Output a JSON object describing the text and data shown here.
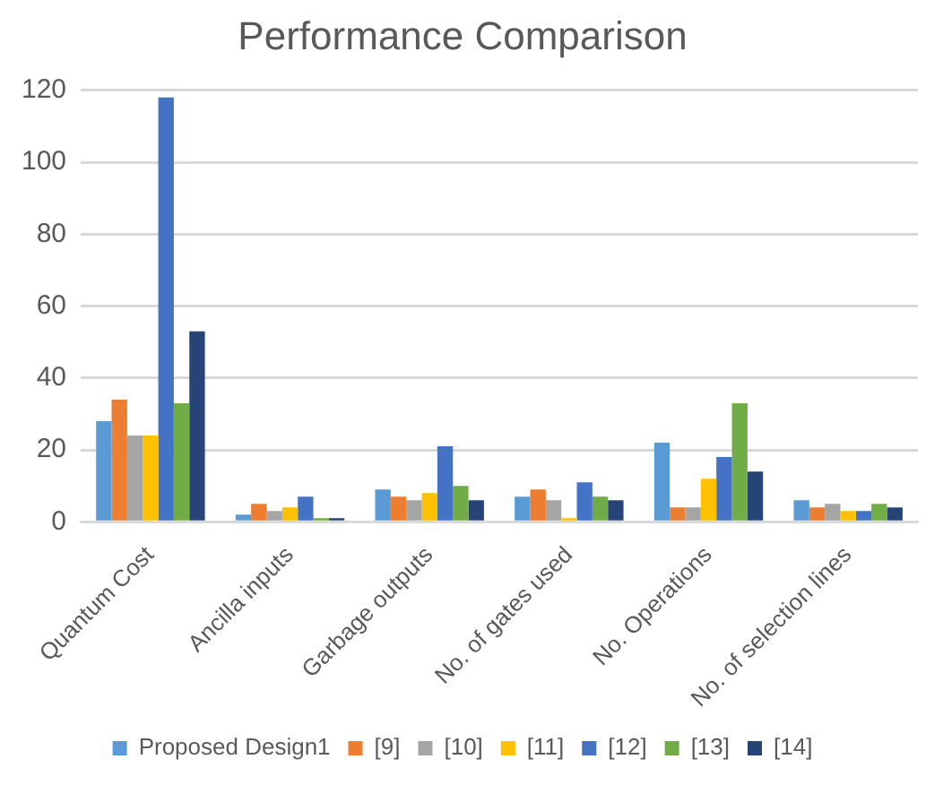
{
  "chart_data": {
    "type": "bar",
    "title": "Performance Comparison",
    "categories": [
      "Quantum Cost",
      "Ancilla inputs",
      "Garbage outputs",
      "No. of gates used",
      "No. Operations",
      "No. of selection lines"
    ],
    "series": [
      {
        "name": "Proposed Design1",
        "color": "#5b9bd5",
        "values": [
          28,
          2,
          9,
          7,
          22,
          6
        ]
      },
      {
        "name": "[9]",
        "color": "#ed7d31",
        "values": [
          34,
          5,
          7,
          9,
          4,
          4
        ]
      },
      {
        "name": "[10]",
        "color": "#a5a5a5",
        "values": [
          24,
          3,
          6,
          6,
          4,
          5
        ]
      },
      {
        "name": "[11]",
        "color": "#ffc000",
        "values": [
          24,
          4,
          8,
          1,
          12,
          3
        ]
      },
      {
        "name": "[12]",
        "color": "#4472c4",
        "values": [
          118,
          7,
          21,
          11,
          18,
          3
        ]
      },
      {
        "name": "[13]",
        "color": "#70ad47",
        "values": [
          33,
          1,
          10,
          7,
          33,
          5
        ]
      },
      {
        "name": "[14]",
        "color": "#264478",
        "values": [
          53,
          1,
          6,
          6,
          14,
          4
        ]
      }
    ],
    "ylim": [
      0,
      120
    ],
    "yticks": [
      0,
      20,
      40,
      60,
      80,
      100,
      120
    ],
    "grid": "y",
    "legend": "bottom"
  }
}
